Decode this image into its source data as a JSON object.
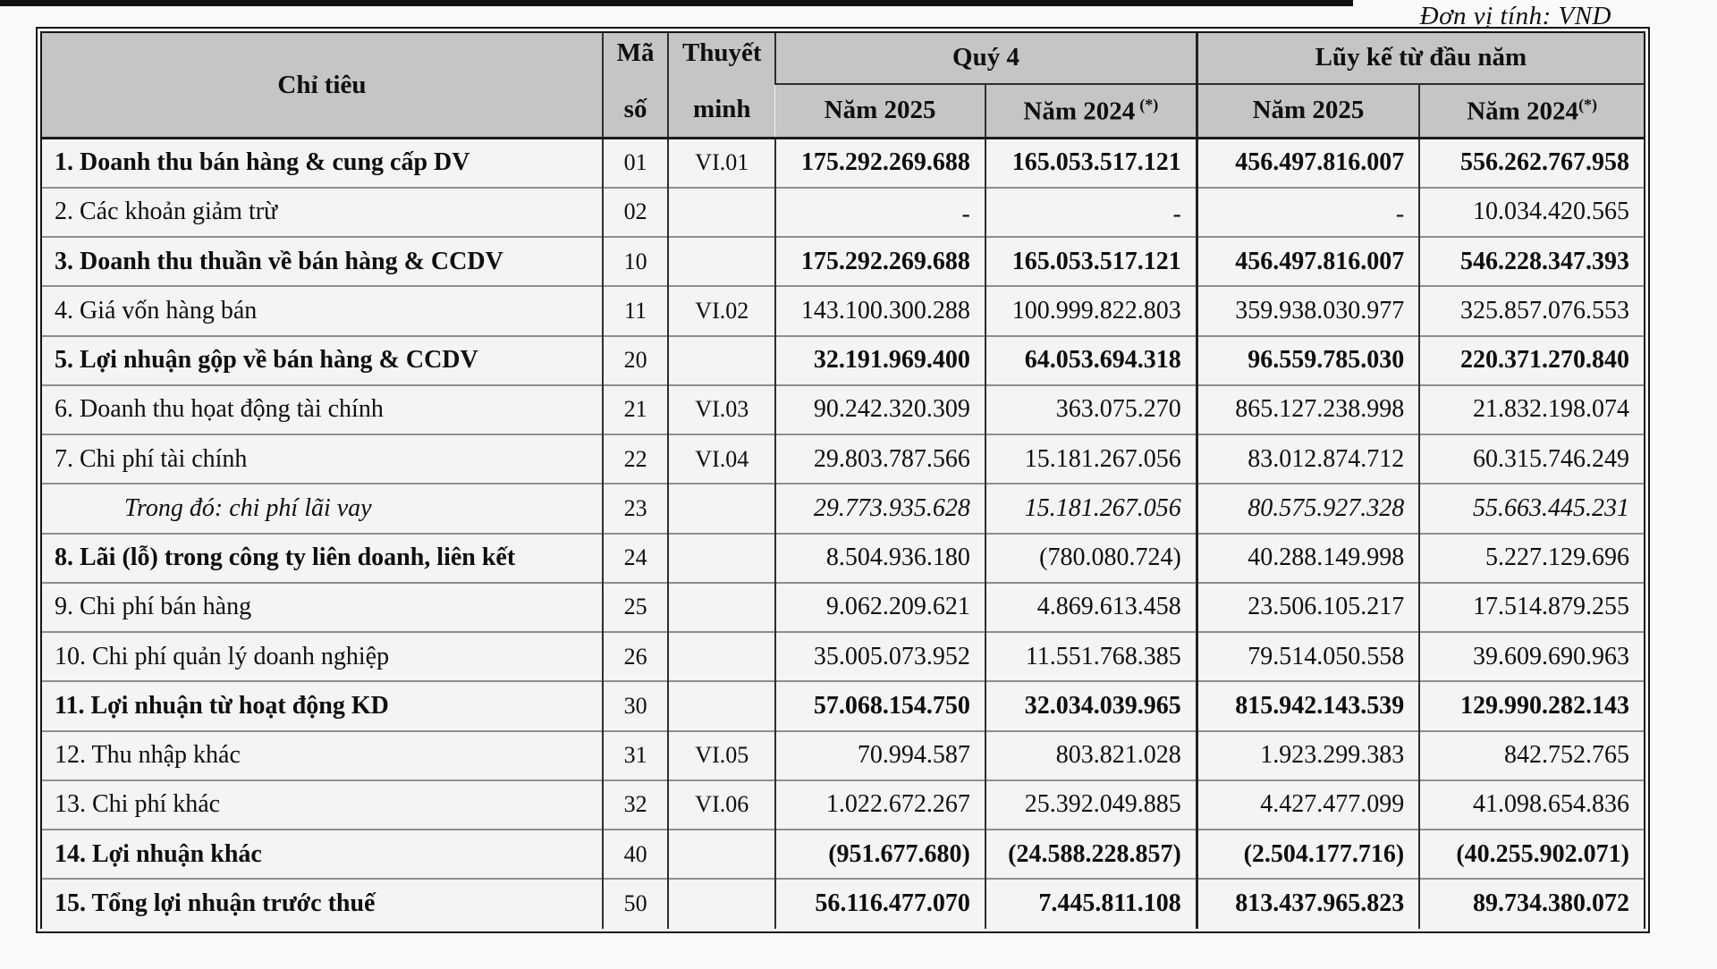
{
  "page": {
    "unit_label": "Đơn vị tính: VND"
  },
  "colors": {
    "header_bg": "#c5c4c7",
    "cell_bg": "#f5f4f2",
    "border": "#1c1c1c"
  },
  "table": {
    "headers": {
      "chi_tieu": "Chỉ tiêu",
      "ma_line1": "Mã",
      "ma_line2": "số",
      "thuyet_line1": "Thuyết",
      "thuyet_line2": "minh",
      "group_q4": "Quý 4",
      "group_luy_ke": "Lũy kế từ đầu năm",
      "q4_year1": "Năm 2025",
      "q4_year2_base": "Năm 2024",
      "q4_year2_sup": "(*)",
      "lk_year1": "Năm 2025",
      "lk_year2_base": "Năm 2024",
      "lk_year2_sup": "(*)"
    },
    "rows": [
      {
        "name": "1. Doanh thu bán hàng & cung cấp DV",
        "code": "01",
        "note": "VI.01",
        "q4_2025": "175.292.269.688",
        "q4_2024": "165.053.517.121",
        "ytd_2025": "456.497.816.007",
        "ytd_2024": "556.262.767.958",
        "name_style": "bold",
        "values_style": "bold",
        "indent": false
      },
      {
        "name": "2. Các khoản giảm trừ",
        "code": "02",
        "note": "",
        "q4_2025": "-",
        "q4_2024": "-",
        "ytd_2025": "-",
        "ytd_2024": "10.034.420.565",
        "name_style": "normal",
        "values_style": "normal",
        "indent": false
      },
      {
        "name": "3. Doanh thu thuần về bán hàng & CCDV",
        "code": "10",
        "note": "",
        "q4_2025": "175.292.269.688",
        "q4_2024": "165.053.517.121",
        "ytd_2025": "456.497.816.007",
        "ytd_2024": "546.228.347.393",
        "name_style": "bold",
        "values_style": "bold",
        "indent": false
      },
      {
        "name": "4. Giá vốn hàng bán",
        "code": "11",
        "note": "VI.02",
        "q4_2025": "143.100.300.288",
        "q4_2024": "100.999.822.803",
        "ytd_2025": "359.938.030.977",
        "ytd_2024": "325.857.076.553",
        "name_style": "normal",
        "values_style": "normal",
        "indent": false
      },
      {
        "name": "5. Lợi nhuận gộp về bán hàng & CCDV",
        "code": "20",
        "note": "",
        "q4_2025": "32.191.969.400",
        "q4_2024": "64.053.694.318",
        "ytd_2025": "96.559.785.030",
        "ytd_2024": "220.371.270.840",
        "name_style": "bold",
        "values_style": "bold",
        "indent": false
      },
      {
        "name": "6. Doanh thu họat động tài chính",
        "code": "21",
        "note": "VI.03",
        "q4_2025": "90.242.320.309",
        "q4_2024": "363.075.270",
        "ytd_2025": "865.127.238.998",
        "ytd_2024": "21.832.198.074",
        "name_style": "normal",
        "values_style": "normal",
        "indent": false
      },
      {
        "name": "7. Chi phí tài chính",
        "code": "22",
        "note": "VI.04",
        "q4_2025": "29.803.787.566",
        "q4_2024": "15.181.267.056",
        "ytd_2025": "83.012.874.712",
        "ytd_2024": "60.315.746.249",
        "name_style": "normal",
        "values_style": "normal",
        "indent": false
      },
      {
        "name": "Trong đó: chi phí lãi vay",
        "code": "23",
        "note": "",
        "q4_2025": "29.773.935.628",
        "q4_2024": "15.181.267.056",
        "ytd_2025": "80.575.927.328",
        "ytd_2024": "55.663.445.231",
        "name_style": "italic",
        "values_style": "italic",
        "indent": true
      },
      {
        "name": "8. Lãi (lỗ) trong công ty liên doanh, liên kết",
        "code": "24",
        "note": "",
        "q4_2025": "8.504.936.180",
        "q4_2024": "(780.080.724)",
        "ytd_2025": "40.288.149.998",
        "ytd_2024": "5.227.129.696",
        "name_style": "bold",
        "values_style": "normal",
        "indent": false
      },
      {
        "name": "9. Chi phí bán hàng",
        "code": "25",
        "note": "",
        "q4_2025": "9.062.209.621",
        "q4_2024": "4.869.613.458",
        "ytd_2025": "23.506.105.217",
        "ytd_2024": "17.514.879.255",
        "name_style": "normal",
        "values_style": "normal",
        "indent": false
      },
      {
        "name": "10. Chi phí quản lý doanh nghiệp",
        "code": "26",
        "note": "",
        "q4_2025": "35.005.073.952",
        "q4_2024": "11.551.768.385",
        "ytd_2025": "79.514.050.558",
        "ytd_2024": "39.609.690.963",
        "name_style": "normal",
        "values_style": "normal",
        "indent": false
      },
      {
        "name": "11. Lợi nhuận từ hoạt động KD",
        "code": "30",
        "note": "",
        "q4_2025": "57.068.154.750",
        "q4_2024": "32.034.039.965",
        "ytd_2025": "815.942.143.539",
        "ytd_2024": "129.990.282.143",
        "name_style": "bold",
        "values_style": "bold",
        "indent": false
      },
      {
        "name": "12. Thu nhập khác",
        "code": "31",
        "note": "VI.05",
        "q4_2025": "70.994.587",
        "q4_2024": "803.821.028",
        "ytd_2025": "1.923.299.383",
        "ytd_2024": "842.752.765",
        "name_style": "normal",
        "values_style": "normal",
        "indent": false
      },
      {
        "name": "13. Chi phí khác",
        "code": "32",
        "note": "VI.06",
        "q4_2025": "1.022.672.267",
        "q4_2024": "25.392.049.885",
        "ytd_2025": "4.427.477.099",
        "ytd_2024": "41.098.654.836",
        "name_style": "normal",
        "values_style": "normal",
        "indent": false
      },
      {
        "name": "14. Lợi nhuận khác",
        "code": "40",
        "note": "",
        "q4_2025": "(951.677.680)",
        "q4_2024": "(24.588.228.857)",
        "ytd_2025": "(2.504.177.716)",
        "ytd_2024": "(40.255.902.071)",
        "name_style": "bold",
        "values_style": "bold",
        "indent": false
      },
      {
        "name": "15. Tổng lợi nhuận trước thuế",
        "code": "50",
        "note": "",
        "q4_2025": "56.116.477.070",
        "q4_2024": "7.445.811.108",
        "ytd_2025": "813.437.965.823",
        "ytd_2024": "89.734.380.072",
        "name_style": "bold",
        "values_style": "bold",
        "indent": false
      }
    ]
  }
}
